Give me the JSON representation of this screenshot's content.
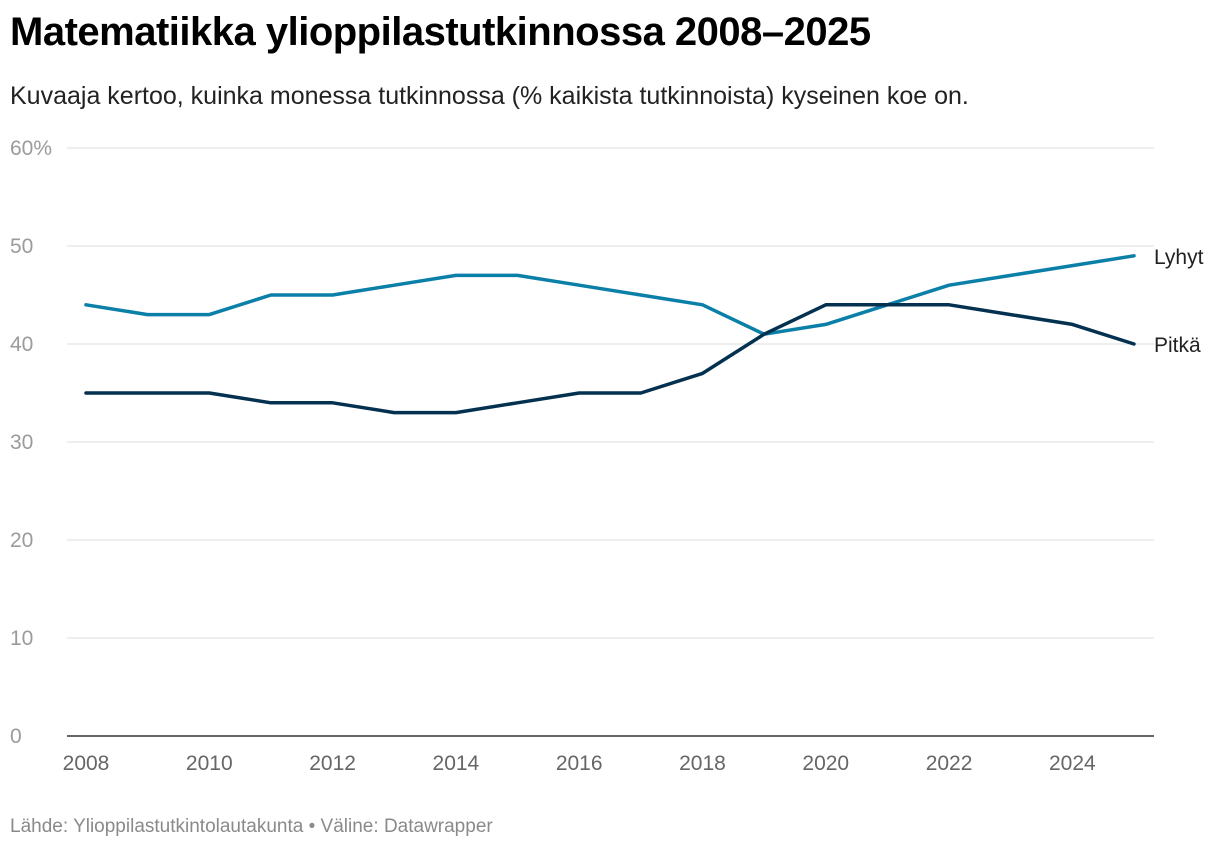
{
  "title": "Matematiikka ylioppilastutkinnossa 2008–2025",
  "subtitle": "Kuvaaja kertoo, kuinka monessa tutkinnossa (% kaikista tutkinnoista) kyseinen koe on.",
  "footer": {
    "source_label": "Lähde:",
    "source": "Ylioppilastutkintolautakunta",
    "separator": "•",
    "tool_label": "Väline:",
    "tool": "Datawrapper"
  },
  "chart_data": {
    "type": "line",
    "title": "Matematiikka ylioppilastutkinnossa 2008–2025",
    "xlabel": "",
    "ylabel": "",
    "x": [
      2008,
      2009,
      2010,
      2011,
      2012,
      2013,
      2014,
      2015,
      2016,
      2017,
      2018,
      2019,
      2020,
      2021,
      2022,
      2023,
      2024,
      2025
    ],
    "xlim": [
      2008,
      2025
    ],
    "ylim": [
      0,
      60
    ],
    "grid": true,
    "x_ticks": [
      "2008",
      "2010",
      "2012",
      "2014",
      "2016",
      "2018",
      "2020",
      "2022",
      "2024"
    ],
    "y_ticks": [
      {
        "value": 0,
        "label": "0"
      },
      {
        "value": 10,
        "label": "10"
      },
      {
        "value": 20,
        "label": "20"
      },
      {
        "value": 30,
        "label": "30"
      },
      {
        "value": 40,
        "label": "40"
      },
      {
        "value": 50,
        "label": "50"
      },
      {
        "value": 60,
        "label": "60%"
      }
    ],
    "series": [
      {
        "name": "Lyhyt",
        "color": "#0a7fa8",
        "values": [
          44,
          43,
          43,
          45,
          45,
          46,
          47,
          47,
          46,
          45,
          44,
          41,
          42,
          44,
          46,
          47,
          48,
          49
        ]
      },
      {
        "name": "Pitkä",
        "color": "#03314f",
        "values": [
          35,
          35,
          35,
          34,
          34,
          33,
          33,
          34,
          35,
          35,
          37,
          41,
          44,
          44,
          44,
          43,
          42,
          40
        ]
      }
    ]
  }
}
